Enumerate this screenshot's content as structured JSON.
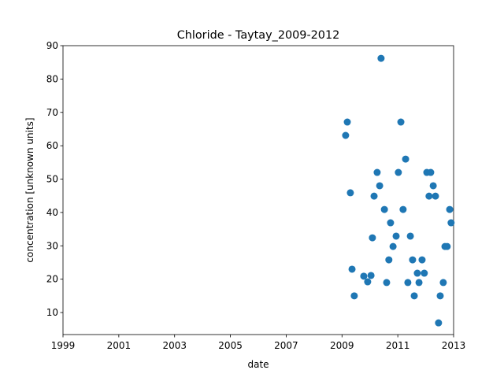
{
  "chart_data": {
    "type": "scatter",
    "title": "Chloride - Taytay_2009-2012",
    "xlabel": "date",
    "ylabel": "concentration [unknown units]",
    "color": "#1f77b4",
    "grid": false,
    "xlim": [
      1999,
      2013
    ],
    "xticks": [
      1999,
      2001,
      2003,
      2005,
      2007,
      2009,
      2011,
      2013
    ],
    "ylim": [
      3.4,
      90
    ],
    "yticks": [
      10,
      20,
      30,
      40,
      50,
      60,
      70,
      80,
      90
    ],
    "x": [
      2009.13,
      2009.19,
      2009.3,
      2009.36,
      2009.44,
      2009.78,
      2009.92,
      2010.04,
      2010.09,
      2010.15,
      2010.26,
      2010.35,
      2010.4,
      2010.52,
      2010.6,
      2010.68,
      2010.74,
      2010.83,
      2010.94,
      2011.02,
      2011.11,
      2011.19,
      2011.28,
      2011.36,
      2011.45,
      2011.53,
      2011.59,
      2011.7,
      2011.76,
      2011.87,
      2011.95,
      2012.04,
      2012.12,
      2012.18,
      2012.27,
      2012.35,
      2012.46,
      2012.52,
      2012.63,
      2012.69,
      2012.77,
      2012.86,
      2012.91
    ],
    "values": [
      63.1,
      67.1,
      45.9,
      23.0,
      15.0,
      20.9,
      19.2,
      21.1,
      32.4,
      44.9,
      52.0,
      48.0,
      86.2,
      40.9,
      19.0,
      25.8,
      36.9,
      29.8,
      32.9,
      52.0,
      67.1,
      40.9,
      56.0,
      19.0,
      32.9,
      25.8,
      15.0,
      21.8,
      19.0,
      25.8,
      21.8,
      52.0,
      44.9,
      52.0,
      48.0,
      44.9,
      6.9,
      15.0,
      19.0,
      29.8,
      29.8,
      40.9,
      36.9
    ]
  }
}
